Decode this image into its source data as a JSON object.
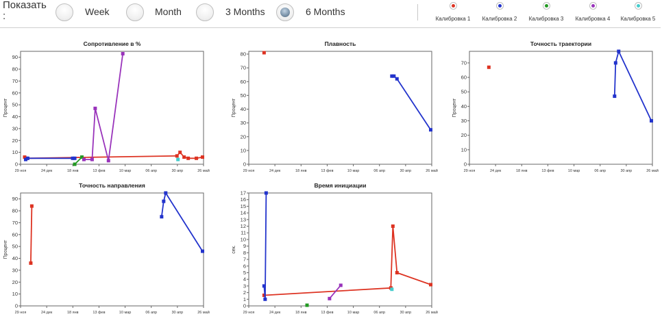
{
  "header": {
    "show_label": "Показать :",
    "periods": [
      {
        "label": "Week",
        "selected": false
      },
      {
        "label": "Month",
        "selected": false
      },
      {
        "label": "3 Months",
        "selected": false
      },
      {
        "label": "6 Months",
        "selected": true
      }
    ]
  },
  "legend": [
    {
      "label": "Калибровка 1",
      "color": "#dd3322"
    },
    {
      "label": "Калибровка 2",
      "color": "#2233cc"
    },
    {
      "label": "Калибровка 3",
      "color": "#229922"
    },
    {
      "label": "Калибровка 4",
      "color": "#9933bb"
    },
    {
      "label": "Калибровка 5",
      "color": "#44cccc"
    }
  ],
  "x_ticks": [
    "29 ноя",
    "24 дек",
    "18 янв",
    "13 фев",
    "10 мар",
    "06 апр",
    "30 апр",
    "26 май"
  ],
  "chart_data": [
    {
      "type": "line",
      "title": "Сопротивление в %",
      "ylabel": "Процент",
      "ylim": [
        0,
        95
      ],
      "yticks": [
        0,
        10,
        20,
        30,
        40,
        50,
        60,
        70,
        80,
        90
      ],
      "xlim": [
        0,
        179
      ],
      "series": [
        {
          "color": "#dd3322",
          "points": [
            [
              4,
              6
            ],
            [
              6,
              5
            ],
            [
              153,
              7
            ],
            [
              156,
              10
            ],
            [
              160,
              6
            ],
            [
              164,
              5
            ],
            [
              172,
              5
            ],
            [
              178,
              6
            ]
          ]
        },
        {
          "color": "#2233cc",
          "points": [
            [
              5,
              4
            ],
            [
              7,
              5
            ],
            [
              51,
              5
            ],
            [
              53,
              5
            ]
          ]
        },
        {
          "color": "#229922",
          "points": [
            [
              53,
              0
            ],
            [
              60,
              6
            ]
          ]
        },
        {
          "color": "#9933bb",
          "points": [
            [
              62,
              4
            ],
            [
              70,
              4
            ],
            [
              73,
              47
            ],
            [
              86,
              3
            ],
            [
              100,
              93
            ]
          ]
        },
        {
          "color": "#44cccc",
          "points": [
            [
              154,
              4
            ]
          ]
        }
      ]
    },
    {
      "type": "line",
      "title": "Плавность",
      "ylabel": "Процент",
      "ylim": [
        0,
        82
      ],
      "yticks": [
        0,
        10,
        20,
        30,
        40,
        50,
        60,
        70,
        80
      ],
      "xlim": [
        0,
        179
      ],
      "series": [
        {
          "color": "#dd3322",
          "points": [
            [
              15,
              81
            ]
          ]
        },
        {
          "color": "#2233cc",
          "points": [
            [
              140,
              64
            ],
            [
              142,
              64
            ],
            [
              145,
              62
            ],
            [
              178,
              25
            ]
          ]
        }
      ]
    },
    {
      "type": "line",
      "title": "Точность траектории",
      "ylabel": "Процент",
      "ylim": [
        0,
        78
      ],
      "yticks": [
        0,
        10,
        20,
        30,
        40,
        50,
        60,
        70
      ],
      "xlim": [
        0,
        179
      ],
      "series": [
        {
          "color": "#dd3322",
          "points": [
            [
              19,
              67
            ]
          ]
        },
        {
          "color": "#2233cc",
          "points": [
            [
              142,
              47
            ],
            [
              143,
              70
            ],
            [
              146,
              78
            ],
            [
              178,
              30
            ]
          ]
        }
      ]
    },
    {
      "type": "line",
      "title": "Точность направления",
      "ylabel": "Процент",
      "ylim": [
        0,
        95
      ],
      "yticks": [
        0,
        10,
        20,
        30,
        40,
        50,
        60,
        70,
        80,
        90
      ],
      "xlim": [
        0,
        179
      ],
      "series": [
        {
          "color": "#dd3322",
          "points": [
            [
              10,
              36
            ],
            [
              11,
              84
            ]
          ]
        },
        {
          "color": "#2233cc",
          "points": [
            [
              138,
              75
            ],
            [
              140,
              88
            ],
            [
              142,
              95
            ],
            [
              178,
              46
            ]
          ]
        }
      ]
    },
    {
      "type": "line",
      "title": "Время инициации",
      "ylabel": "сек.",
      "ylim": [
        0,
        17
      ],
      "yticks": [
        0,
        1,
        2,
        3,
        4,
        5,
        6,
        7,
        8,
        9,
        10,
        11,
        12,
        13,
        14,
        15,
        16,
        17
      ],
      "xlim": [
        0,
        179
      ],
      "series": [
        {
          "color": "#dd3322",
          "points": [
            [
              15,
              1.6
            ],
            [
              139,
              2.7
            ],
            [
              141,
              12
            ],
            [
              145,
              5
            ],
            [
              178,
              3.2
            ]
          ]
        },
        {
          "color": "#2233cc",
          "points": [
            [
              15,
              3
            ],
            [
              16,
              1
            ],
            [
              17,
              17
            ]
          ]
        },
        {
          "color": "#229922",
          "points": [
            [
              57,
              0.1
            ]
          ]
        },
        {
          "color": "#9933bb",
          "points": [
            [
              79,
              1.1
            ],
            [
              90,
              3.1
            ]
          ]
        },
        {
          "color": "#44cccc",
          "points": [
            [
              140,
              2.5
            ]
          ]
        }
      ]
    }
  ]
}
